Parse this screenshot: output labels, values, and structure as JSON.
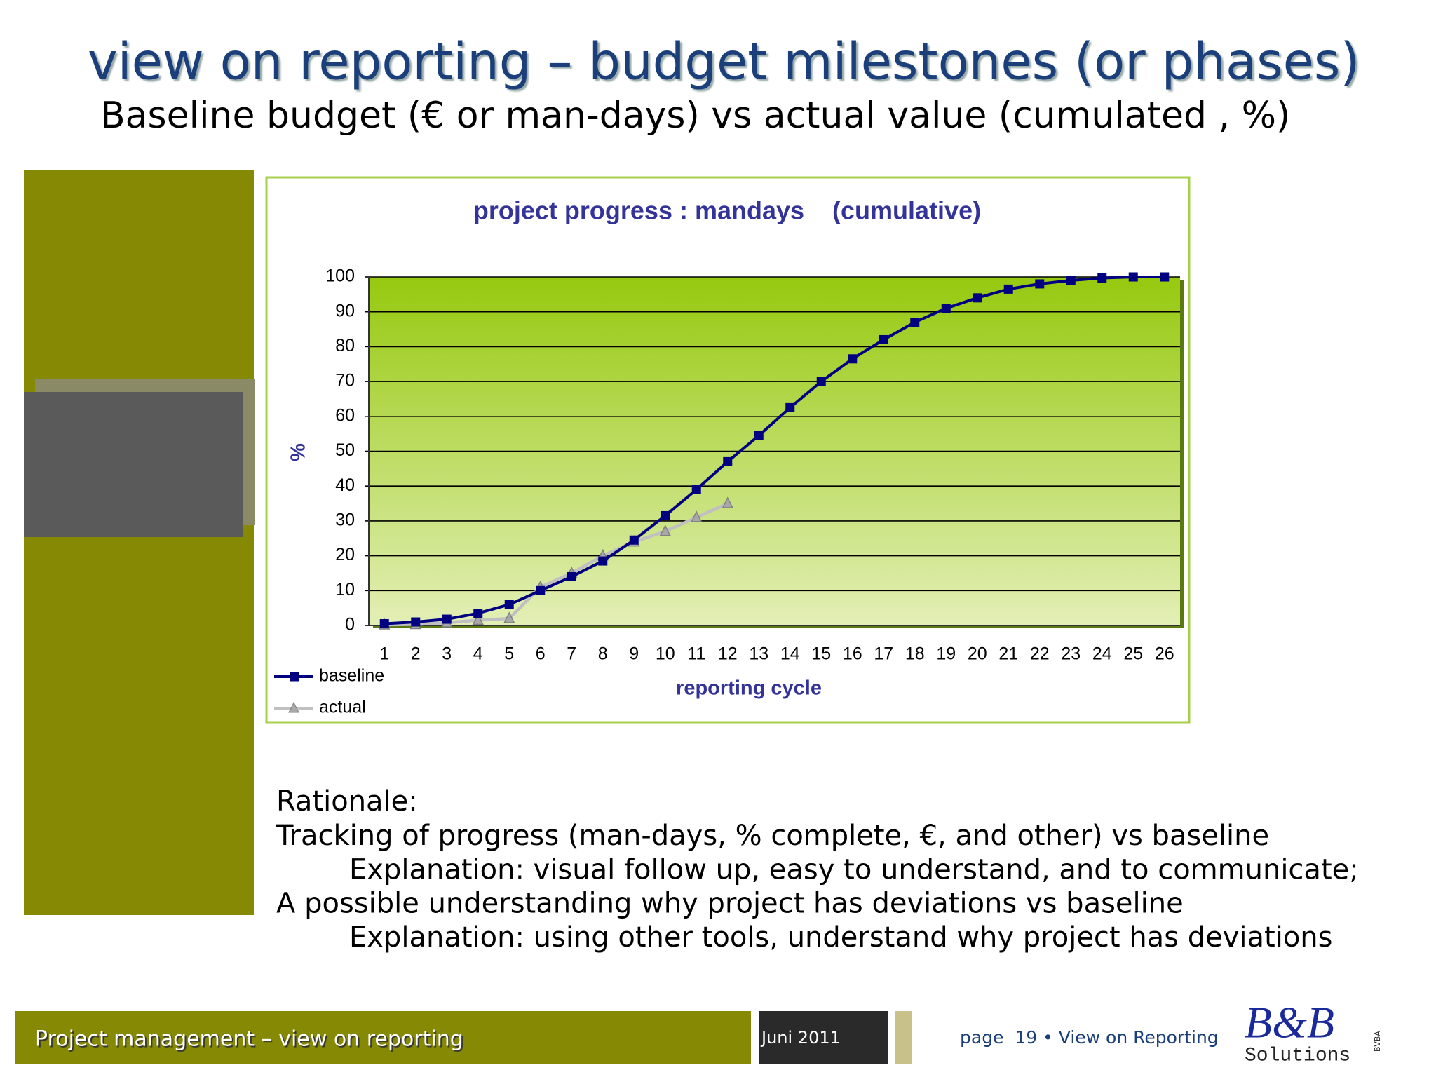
{
  "header": {
    "title": "view on reporting – budget milestones (or phases)",
    "subtitle": "Baseline budget (€ or man-days) vs actual value (cumulated , %)"
  },
  "chart_data": {
    "type": "line",
    "title": "project progress : mandays    (cumulative)",
    "x_label": "reporting cycle",
    "y_label": "%",
    "categories": [
      "1",
      "2",
      "3",
      "4",
      "5",
      "6",
      "7",
      "8",
      "9",
      "10",
      "11",
      "12",
      "13",
      "14",
      "15",
      "16",
      "17",
      "18",
      "19",
      "20",
      "21",
      "22",
      "23",
      "24",
      "25",
      "26"
    ],
    "series": [
      {
        "name": "baseline",
        "color": "#000080",
        "marker": "square",
        "values": [
          0.5,
          1,
          1.8,
          3.5,
          6,
          10,
          14,
          18.5,
          24.5,
          31.5,
          39,
          47,
          54.5,
          62.5,
          70,
          76.5,
          82,
          87,
          91,
          94,
          96.5,
          98,
          99,
          99.7,
          100,
          100
        ]
      },
      {
        "name": "actual",
        "color": "#c0c0c0",
        "marker": "triangle",
        "values": [
          0.2,
          0.3,
          0.8,
          1.5,
          2,
          11,
          15,
          20,
          24,
          27,
          31,
          35,
          null,
          null,
          null,
          null,
          null,
          null,
          null,
          null,
          null,
          null,
          null,
          null,
          null,
          null
        ]
      }
    ],
    "ylim": [
      0,
      100
    ],
    "yticks": [
      0,
      10,
      20,
      30,
      40,
      50,
      60,
      70,
      80,
      90,
      100
    ],
    "grid": true,
    "legend": "bottom-left"
  },
  "rationale": {
    "heading": "Rationale:",
    "lines": [
      "Tracking of progress (man-days, % complete, €, and other) vs baseline",
      "Explanation: visual follow up, easy to understand, and to communicate;",
      "A possible understanding why project has deviations vs baseline",
      "Explanation: using other tools, understand why project has deviations"
    ]
  },
  "footer": {
    "left": "Project management – view on reporting",
    "date": "Juni 2011",
    "page": "page  19 • View on Reporting",
    "logo": "B&B",
    "logo_sub": "Solutions",
    "logo_tag": "BVBA"
  }
}
